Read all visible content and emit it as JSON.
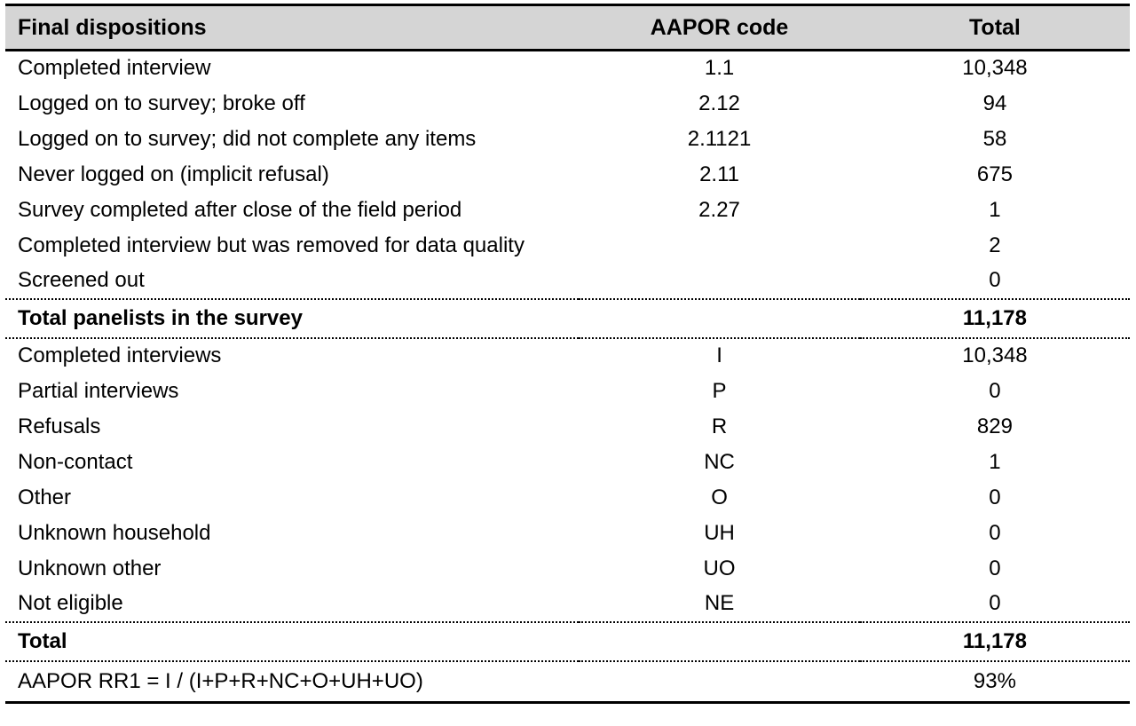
{
  "colors": {
    "header_bg": "#d5d5d5",
    "text": "#000000",
    "border": "#000000"
  },
  "table": {
    "columns": {
      "label": "Final dispositions",
      "code": "AAPOR code",
      "total": "Total"
    },
    "section1_rows": [
      {
        "label": "Completed interview",
        "code": "1.1",
        "total": "10,348"
      },
      {
        "label": "Logged on to survey; broke off",
        "code": "2.12",
        "total": "94"
      },
      {
        "label": "Logged on to survey; did not complete any items",
        "code": "2.1121",
        "total": "58"
      },
      {
        "label": "Never logged on (implicit refusal)",
        "code": "2.11",
        "total": "675"
      },
      {
        "label": "Survey completed after close of the field period",
        "code": "2.27",
        "total": "1"
      },
      {
        "label": "Completed interview but was removed for data quality",
        "code": "",
        "total": "2"
      },
      {
        "label": "Screened out",
        "code": "",
        "total": "0"
      }
    ],
    "summary1": {
      "label": "Total panelists in the survey",
      "code": "",
      "total": "11,178"
    },
    "section2_rows": [
      {
        "label": "Completed interviews",
        "code": "I",
        "total": "10,348"
      },
      {
        "label": "Partial interviews",
        "code": "P",
        "total": "0"
      },
      {
        "label": "Refusals",
        "code": "R",
        "total": "829"
      },
      {
        "label": "Non-contact",
        "code": "NC",
        "total": "1"
      },
      {
        "label": "Other",
        "code": "O",
        "total": "0"
      },
      {
        "label": "Unknown household",
        "code": "UH",
        "total": "0"
      },
      {
        "label": "Unknown other",
        "code": "UO",
        "total": "0"
      },
      {
        "label": "Not eligible",
        "code": "NE",
        "total": "0"
      }
    ],
    "summary2": {
      "label": "Total",
      "code": "",
      "total": "11,178"
    },
    "footer": {
      "label": "AAPOR RR1 = I / (I+P+R+NC+O+UH+UO)",
      "code": "",
      "total": "93%"
    }
  }
}
